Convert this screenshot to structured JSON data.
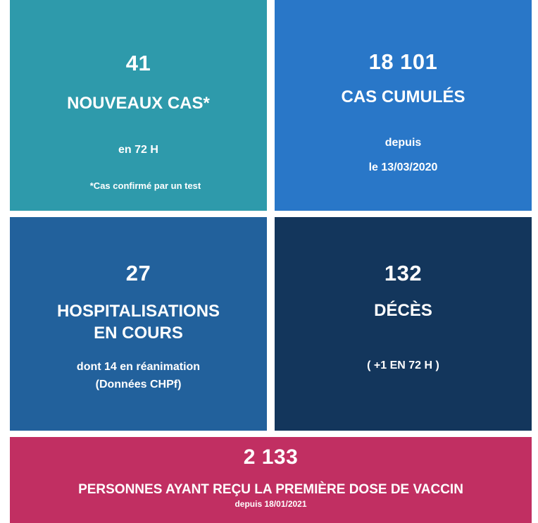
{
  "tiles": {
    "new_cases": {
      "value": "41",
      "label": "NOUVEAUX CAS*",
      "period": "en 72 H",
      "footnote": "*Cas confirmé par un test",
      "color": "#2e9aab"
    },
    "cumulative_cases": {
      "value": "18 101",
      "label": "CAS CUMULÉS",
      "since_line1": "depuis",
      "since_line2": "le 13/03/2020",
      "color": "#2977c8"
    },
    "hospitalisations": {
      "value": "27",
      "label_line1": "HOSPITALISATIONS",
      "label_line2": "EN COURS",
      "detail_line1": "dont 14 en réanimation",
      "detail_line2": "(Données CHPf)",
      "color": "#22619c"
    },
    "deaths": {
      "value": "132",
      "label": "DÉCÈS",
      "change": "( +1 EN 72 H )",
      "color": "#13365c"
    },
    "vaccination": {
      "value": "2 133",
      "label": "PERSONNES AYANT REÇU LA PREMIÈRE DOSE DE VACCIN",
      "since": "depuis 18/01/2021",
      "color": "#c12f62"
    }
  }
}
